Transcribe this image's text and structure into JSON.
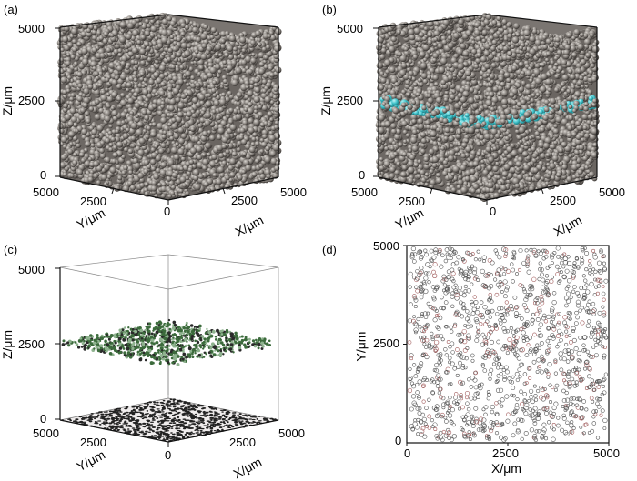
{
  "panels": [
    {
      "id": "a",
      "label": "(a)"
    },
    {
      "id": "b",
      "label": "(b)"
    },
    {
      "id": "c",
      "label": "(c)"
    },
    {
      "id": "d",
      "label": "(d)"
    }
  ],
  "axes3d": {
    "z_title": "Z/μm",
    "y_title": "Y/μm",
    "x_title": "X/μm",
    "z_ticks": [
      "0",
      "2500",
      "5000"
    ],
    "y_ticks": [
      "5000",
      "2500"
    ],
    "x_ticks": [
      "2500",
      "5000"
    ],
    "origin": "0"
  },
  "axes2d": {
    "y_title": "Y/μm",
    "x_title": "X/μm",
    "y_ticks": [
      "0",
      "2500",
      "5000"
    ],
    "x_ticks": [
      "0",
      "2500",
      "5000"
    ]
  },
  "colors": {
    "particle": "#8a8580",
    "particle_light": "#d8d4cf",
    "particle_dark": "#3a3633",
    "highlight_band": "#3ec1c9",
    "slice_particles": "#3c6b3c",
    "circle_outline": "#555555"
  }
}
